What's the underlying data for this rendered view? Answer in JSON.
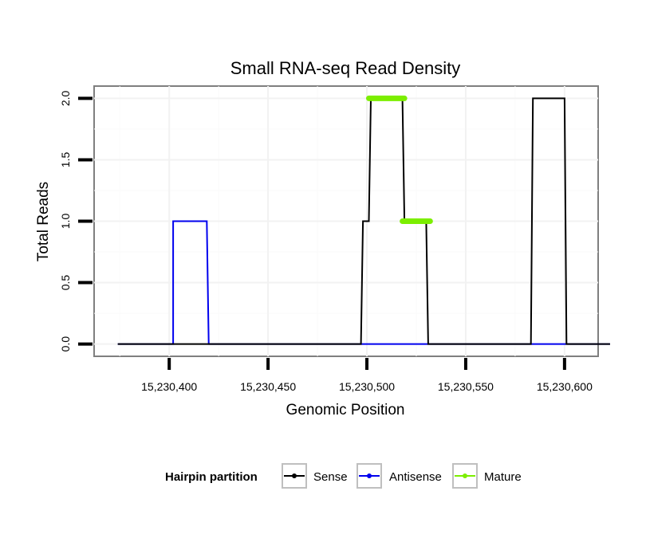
{
  "chart_data": {
    "type": "line",
    "title": "Small RNA-seq Read Density",
    "xlabel": "Genomic Position",
    "ylabel": "Total Reads",
    "xlim": [
      15230362,
      15230617
    ],
    "ylim": [
      -0.1,
      2.1
    ],
    "x_ticks": [
      15230400,
      15230450,
      15230500,
      15230550,
      15230600
    ],
    "x_tick_labels": [
      "15,230,400",
      "15,230,450",
      "15,230,500",
      "15,230,550",
      "15,230,600"
    ],
    "y_ticks": [
      0,
      0.5,
      1,
      1.5,
      2
    ],
    "y_tick_labels": [
      "0.0",
      "0.5",
      "1.0",
      "1.5",
      "2.0"
    ],
    "grid": true,
    "legend": {
      "title": "Hairpin partition",
      "position": "bottom",
      "entries": [
        "Sense",
        "Antisense",
        "Mature"
      ]
    },
    "series": [
      {
        "name": "Sense",
        "color": "#000000",
        "x": [
          15230374,
          15230497,
          15230498,
          15230500,
          15230501,
          15230502,
          15230518,
          15230519,
          15230530,
          15230531,
          15230583,
          15230584,
          15230600,
          15230601,
          15230623
        ],
        "y": [
          0,
          0,
          1,
          1,
          1,
          2,
          2,
          1,
          1,
          0,
          0,
          2,
          2,
          0,
          0
        ]
      },
      {
        "name": "Antisense",
        "color": "#0000ee",
        "x": [
          15230374,
          15230402,
          15230402,
          15230419,
          15230420,
          15230623
        ],
        "y": [
          0,
          0,
          1,
          1,
          0,
          0
        ]
      },
      {
        "name": "Mature",
        "color": "#7cee00",
        "segments": [
          {
            "x": [
              15230501,
              15230519
            ],
            "y": [
              2,
              2
            ]
          },
          {
            "x": [
              15230518,
              15230532
            ],
            "y": [
              1,
              1
            ]
          }
        ]
      }
    ]
  }
}
